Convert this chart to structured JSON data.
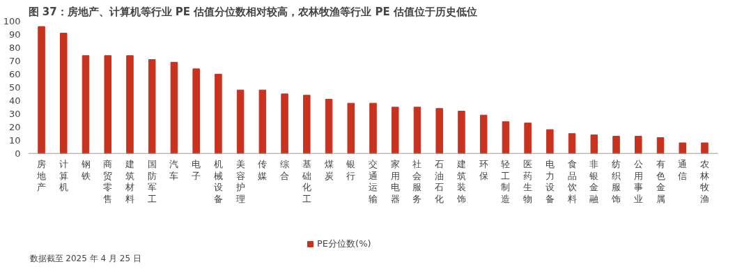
{
  "chart_data": {
    "type": "bar",
    "title": "图 37：房地产、计算机等行业 PE 估值分位数相对较高，农林牧渔等行业 PE 估值位于历史低位",
    "categories": [
      "房地产",
      "计算机",
      "钢铁",
      "商贸零售",
      "建筑材料",
      "国防军工",
      "汽车",
      "电子",
      "机械设备",
      "美容护理",
      "传媒",
      "综合",
      "基础化工",
      "煤炭",
      "银行",
      "交通运输",
      "家用电器",
      "社会服务",
      "石油石化",
      "建筑装饰",
      "环保",
      "轻工制造",
      "医药生物",
      "电力设备",
      "食品饮料",
      "非银金融",
      "纺织服饰",
      "公用事业",
      "有色金属",
      "通信",
      "农林牧渔"
    ],
    "series": [
      {
        "name": "PE分位数(%)",
        "color": "#c8321e",
        "values": [
          96,
          91,
          74,
          74,
          74,
          71,
          69,
          64,
          60,
          48,
          48,
          45,
          44,
          41,
          38,
          38,
          35,
          35,
          34,
          32,
          29,
          24,
          23,
          18,
          15,
          14,
          13,
          13,
          12,
          8,
          8
        ]
      }
    ],
    "ylim": [
      0,
      100
    ],
    "yticks": [
      0,
      10,
      20,
      30,
      40,
      50,
      60,
      70,
      80,
      90,
      100
    ],
    "grid": false,
    "legend": "bottom",
    "annotations": [
      "数据截至 2025 年 4 月 25 日"
    ]
  }
}
